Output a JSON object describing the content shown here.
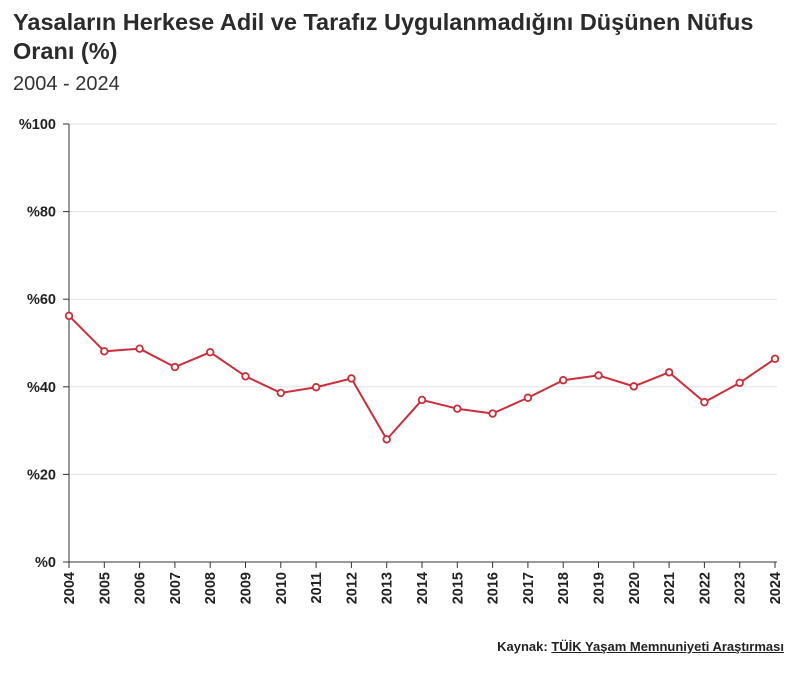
{
  "header": {
    "title": "Yasaların Herkese Adil ve Tarafız Uygulanmadığını Düşünen Nüfus Oranı (%)",
    "subtitle": "2004 - 2024"
  },
  "source": {
    "prefix": "Kaynak:",
    "link_text": "TÜİK Yaşam Memnuniyeti Araştırması"
  },
  "colors": {
    "series": "#cc2d39",
    "grid": "#e3e3e3",
    "axis": "#333333"
  },
  "chart_data": {
    "type": "line",
    "title": "Yasaların Herkese Adil ve Tarafız Uygulanmadığını Düşünen Nüfus Oranı (%)",
    "subtitle": "2004 - 2024",
    "x": [
      "2004",
      "2005",
      "2006",
      "2007",
      "2008",
      "2009",
      "2010",
      "2011",
      "2012",
      "2013",
      "2014",
      "2015",
      "2016",
      "2017",
      "2018",
      "2019",
      "2020",
      "2021",
      "2022",
      "2023",
      "2024"
    ],
    "series": [
      {
        "values": [
          56.2,
          48.1,
          48.7,
          44.5,
          47.9,
          42.4,
          38.6,
          39.9,
          41.9,
          28.0,
          37.0,
          35.0,
          33.9,
          37.5,
          41.5,
          42.6,
          40.1,
          43.3,
          36.5,
          40.9,
          46.4
        ]
      }
    ],
    "ylim": [
      0,
      100
    ],
    "yticks": [
      0,
      20,
      40,
      60,
      80,
      100
    ],
    "ytick_labels": [
      "%0",
      "%20",
      "%40",
      "%60",
      "%80",
      "%100"
    ],
    "grid": true,
    "legend": "none"
  }
}
